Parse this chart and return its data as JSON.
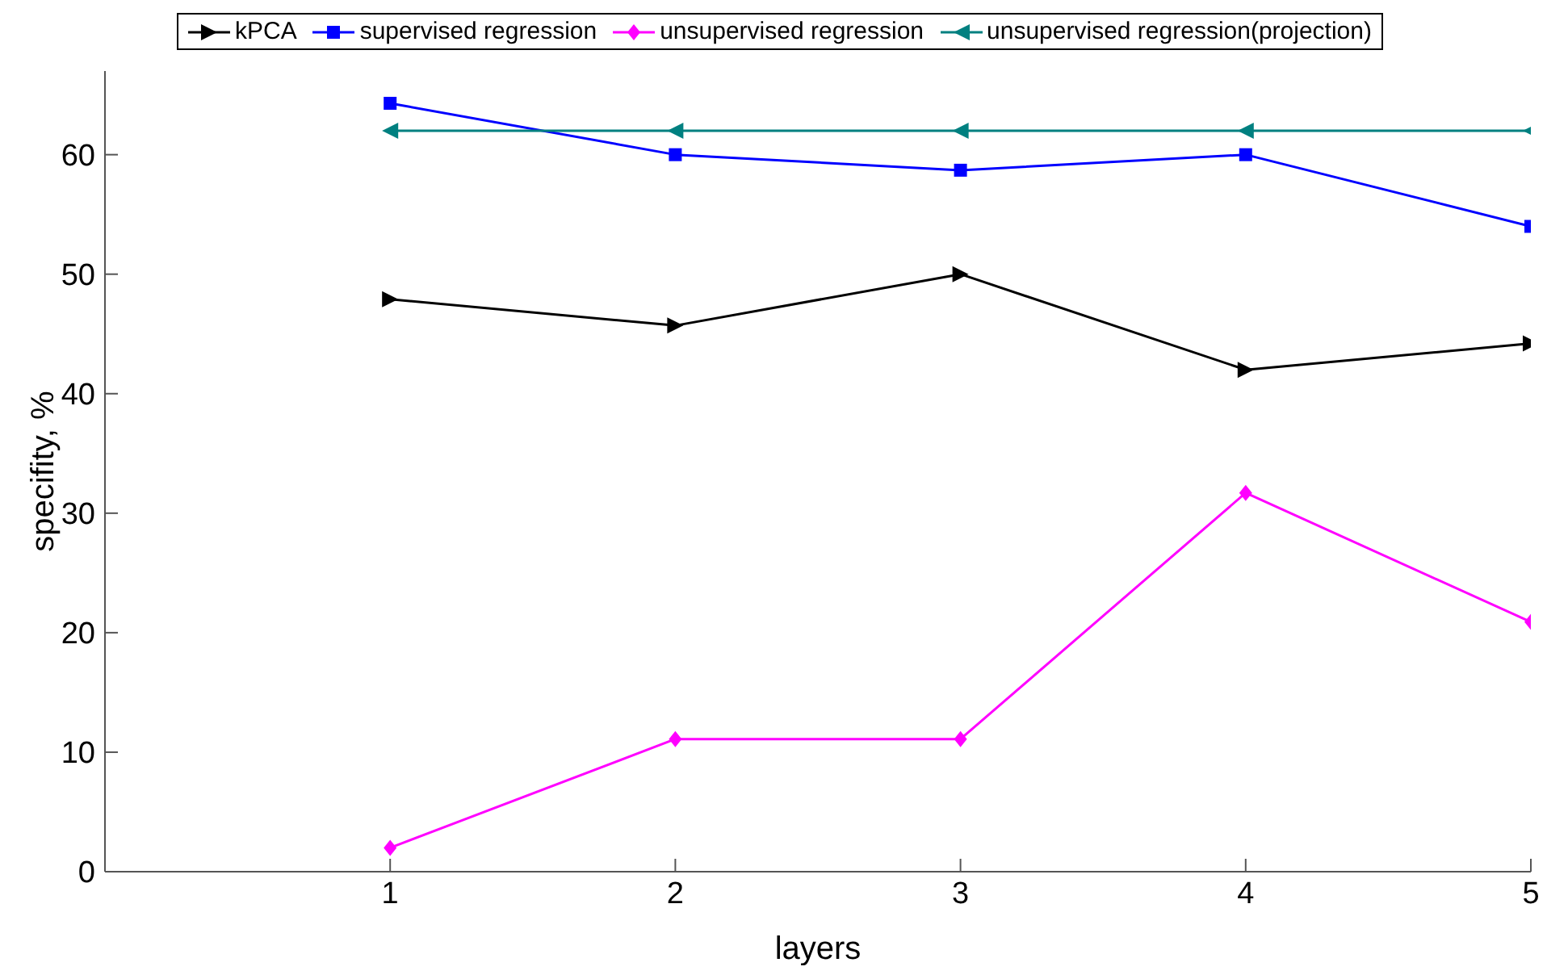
{
  "chart_data": {
    "type": "line",
    "xlabel": "layers",
    "ylabel": "specifity, %",
    "x": [
      1,
      2,
      3,
      4,
      5
    ],
    "xlim": [
      0,
      5
    ],
    "xticks": [
      1,
      2,
      3,
      4,
      5
    ],
    "ylim": [
      0,
      67
    ],
    "yticks": [
      0,
      10,
      20,
      30,
      40,
      50,
      60
    ],
    "legend": "top",
    "line_style": "solid",
    "series": [
      {
        "name": "kPCA",
        "color": "#000000",
        "marker": "triangle-right",
        "values": [
          47.9,
          45.7,
          50.0,
          42.0,
          44.2
        ]
      },
      {
        "name": "supervised regression",
        "color": "#0000ff",
        "marker": "square",
        "values": [
          64.3,
          60.0,
          58.7,
          60.0,
          54.0
        ]
      },
      {
        "name": "unsupervised regression",
        "color": "#ff00ff",
        "marker": "diamond",
        "values": [
          2.0,
          11.1,
          11.1,
          31.7,
          20.9
        ]
      },
      {
        "name": "unsupervised regression(projection)",
        "color": "#008080",
        "marker": "triangle-left",
        "values": [
          62.0,
          62.0,
          62.0,
          62.0,
          62.0
        ]
      }
    ]
  }
}
